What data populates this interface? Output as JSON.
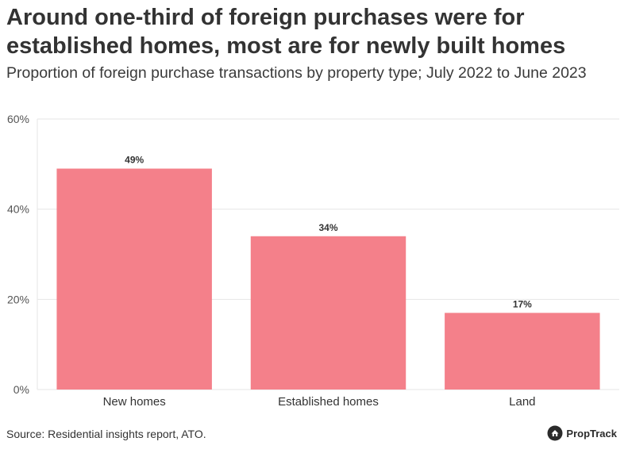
{
  "title": "Around one-third of foreign purchases were for established homes, most are for newly built homes",
  "subtitle": "Proportion of foreign purchase transactions by property type; July 2022 to June 2023",
  "source": "Source: Residential insights report, ATO.",
  "brand": "PropTrack",
  "colors": {
    "bar": "#f4808a",
    "grid": "#e6e6e6",
    "axis_text": "#555555",
    "label_text": "#333333"
  },
  "chart_data": {
    "type": "bar",
    "categories": [
      "New homes",
      "Established homes",
      "Land"
    ],
    "values": [
      49,
      34,
      17
    ],
    "data_labels": [
      "49%",
      "34%",
      "17%"
    ],
    "ylim": [
      0,
      60
    ],
    "yticks": [
      0,
      20,
      40,
      60
    ],
    "ytick_labels": [
      "0%",
      "20%",
      "40%",
      "60%"
    ],
    "xlabel": "",
    "ylabel": "",
    "grid": true
  }
}
